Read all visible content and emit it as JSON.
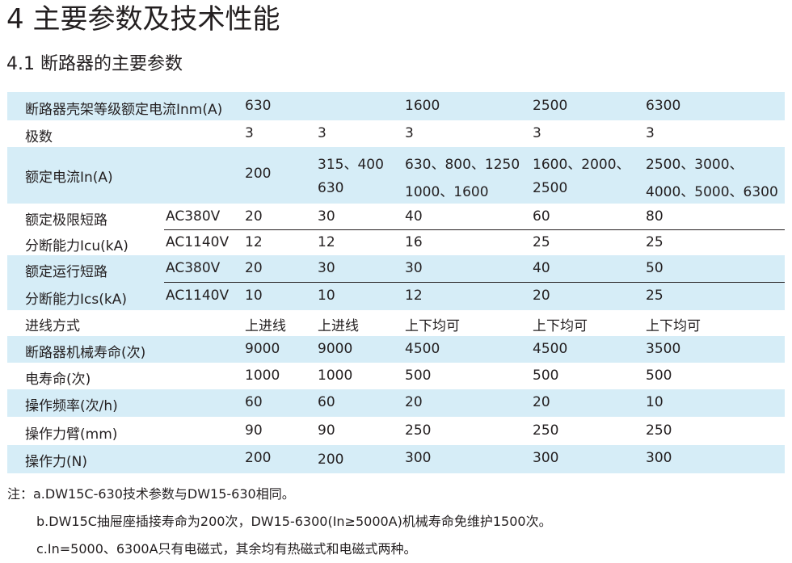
{
  "title": "4 主要参数及技术性能",
  "subtitle": "4.1 断路器的主要参数",
  "table": {
    "header": {
      "label": "断路器壳架等级额定电流Inm(A)",
      "values": [
        "630",
        "1600",
        "2500",
        "6300"
      ]
    },
    "poles": {
      "label": "极数",
      "values": [
        "3",
        "3",
        "3",
        "3",
        "3"
      ]
    },
    "rated_current": {
      "label": "额定电流In(A)",
      "c1": "200",
      "c2": [
        "315、400",
        "630"
      ],
      "c3": [
        "630、800、1250",
        "1000、1600"
      ],
      "c4": [
        "1600、2000、",
        "2500"
      ],
      "c5": [
        "2500、3000、",
        "4000、5000、6300"
      ]
    },
    "icu": {
      "label1": "额定极限短路",
      "label2": "分断能力Icu(kA)",
      "ac380": {
        "v": "AC380V",
        "values": [
          "20",
          "30",
          "40",
          "60",
          "80"
        ]
      },
      "ac1140": {
        "v": "AC1140V",
        "values": [
          "12",
          "12",
          "16",
          "25",
          "25"
        ]
      }
    },
    "ics": {
      "label1": "额定运行短路",
      "label2": "分断能力Ics(kA)",
      "ac380": {
        "v": "AC380V",
        "values": [
          "20",
          "30",
          "30",
          "40",
          "50"
        ]
      },
      "ac1140": {
        "v": "AC1140V",
        "values": [
          "10",
          "10",
          "12",
          "20",
          "25"
        ]
      }
    },
    "rows": [
      {
        "label": "进线方式",
        "values": [
          "上进线",
          "上进线",
          "上下均可",
          "上下均可",
          "上下均可"
        ],
        "shade": false
      },
      {
        "label": "断路器机械寿命(次)",
        "values": [
          "9000",
          "9000",
          "4500",
          "4500",
          "3500"
        ],
        "shade": true
      },
      {
        "label": "电寿命(次)",
        "values": [
          "1000",
          "1000",
          "500",
          "500",
          "500"
        ],
        "shade": false
      },
      {
        "label": "操作频率(次/h)",
        "values": [
          "60",
          "60",
          "20",
          "20",
          "10"
        ],
        "shade": true
      },
      {
        "label": "操作力臂(mm)",
        "values": [
          "90",
          "90",
          "250",
          "250",
          "250"
        ],
        "shade": false
      },
      {
        "label": "操作力(N)",
        "values": [
          "200",
          "200",
          "300",
          "300",
          "300"
        ],
        "shade": true
      }
    ]
  },
  "notes": [
    "注：a.DW15C-630技术参数与DW15-630相同。",
    "b.DW15C抽屉座插接寿命为200次，DW15-6300(In≥5000A)机械寿命免维护1500次。",
    "c.In=5000、6300A只有电磁式，其余均有热磁式和电磁式两种。"
  ]
}
